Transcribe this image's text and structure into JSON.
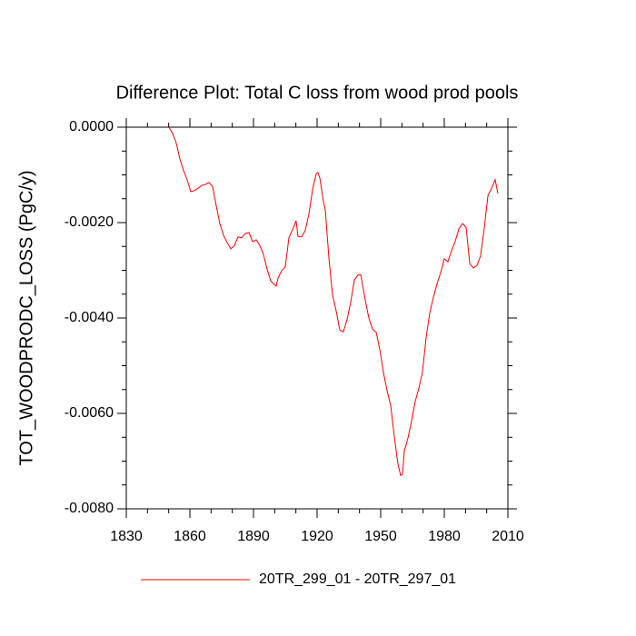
{
  "chart_data": {
    "type": "line",
    "title": "Difference Plot: Total C loss from wood prod pools",
    "y_label": "TOT_WOODPRODC_LOSS  (PgC/y)",
    "x": [
      1850.1,
      1851.9,
      1853.6,
      1855.3,
      1857.0,
      1858.7,
      1860.4,
      1862.1,
      1863.9,
      1865.6,
      1867.3,
      1869.0,
      1870.7,
      1872.4,
      1874.1,
      1875.9,
      1877.6,
      1879.3,
      1881.0,
      1882.7,
      1884.4,
      1886.1,
      1887.9,
      1889.6,
      1891.3,
      1893.0,
      1894.7,
      1896.4,
      1898.1,
      1899.9,
      1900.7,
      1901.6,
      1903.3,
      1905.0,
      1906.7,
      1908.4,
      1910.1,
      1911.0,
      1912.7,
      1914.4,
      1916.1,
      1917.9,
      1919.6,
      1920.4,
      1921.3,
      1923.0,
      1923.9,
      1925.6,
      1927.3,
      1929.0,
      1930.7,
      1932.4,
      1934.1,
      1935.9,
      1937.6,
      1939.3,
      1940.6,
      1942.7,
      1944.4,
      1946.1,
      1947.9,
      1949.6,
      1951.3,
      1953.0,
      1954.7,
      1956.4,
      1958.1,
      1959.4,
      1960.3,
      1961.1,
      1962.9,
      1964.6,
      1966.3,
      1968.0,
      1969.7,
      1971.4,
      1973.1,
      1974.9,
      1976.6,
      1978.3,
      1980.0,
      1981.7,
      1983.4,
      1985.1,
      1986.9,
      1988.6,
      1990.3,
      1992.0,
      1993.7,
      1995.4,
      1997.1,
      1998.9,
      2000.6,
      2002.3,
      2004.0,
      2005.3
    ],
    "series": [
      {
        "name": "20TR_299_01 - 20TR_297_01",
        "color": "#ff0000",
        "values": [
          0,
          -0.00013,
          -0.00034,
          -0.00067,
          -0.00091,
          -0.0011,
          -0.00135,
          -0.00133,
          -0.00128,
          -0.00122,
          -0.0012,
          -0.00116,
          -0.00124,
          -0.00164,
          -0.00202,
          -0.00227,
          -0.00242,
          -0.00255,
          -0.00248,
          -0.0023,
          -0.00232,
          -0.00223,
          -0.00221,
          -0.0024,
          -0.00236,
          -0.00248,
          -0.00267,
          -0.00297,
          -0.00322,
          -0.0033,
          -0.00333,
          -0.00316,
          -0.00301,
          -0.00293,
          -0.00232,
          -0.00215,
          -0.00196,
          -0.00229,
          -0.0023,
          -0.00217,
          -0.00183,
          -0.0013,
          -0.00097,
          -0.00095,
          -0.00107,
          -0.00156,
          -0.00175,
          -0.00276,
          -0.00352,
          -0.00385,
          -0.00425,
          -0.00429,
          -0.00404,
          -0.00366,
          -0.0032,
          -0.0031,
          -0.00309,
          -0.00362,
          -0.004,
          -0.00423,
          -0.0043,
          -0.00467,
          -0.00514,
          -0.00552,
          -0.00583,
          -0.00648,
          -0.00705,
          -0.0073,
          -0.00728,
          -0.0068,
          -0.00651,
          -0.00615,
          -0.00575,
          -0.00547,
          -0.00514,
          -0.00442,
          -0.0039,
          -0.00356,
          -0.00328,
          -0.00305,
          -0.00276,
          -0.00282,
          -0.00259,
          -0.0024,
          -0.00213,
          -0.00202,
          -0.0021,
          -0.00286,
          -0.00295,
          -0.0029,
          -0.0027,
          -0.0021,
          -0.00143,
          -0.00128,
          -0.0011,
          -0.00139
        ]
      }
    ],
    "xlim": [
      1830,
      2010
    ],
    "xticks": [
      1830,
      1860,
      1890,
      1920,
      1950,
      1980,
      2010
    ],
    "xminorticks": [
      1840,
      1850,
      1870,
      1880,
      1900,
      1910,
      1930,
      1940,
      1960,
      1970,
      1990,
      2000
    ],
    "ylim": [
      -0.008,
      0
    ],
    "yticks": [
      {
        "value": 0,
        "label": "0.0000"
      },
      {
        "value": -0.002,
        "label": "-0.0020"
      },
      {
        "value": -0.004,
        "label": "-0.0040"
      },
      {
        "value": -0.006,
        "label": "-0.0060"
      },
      {
        "value": -0.008,
        "label": "-0.0080"
      }
    ],
    "yminorticks": [
      -0.0005,
      -0.001,
      -0.0015,
      -0.0025,
      -0.003,
      -0.0035,
      -0.0045,
      -0.005,
      -0.0055,
      -0.0065,
      -0.007,
      -0.0075
    ],
    "legend": "bottom"
  }
}
